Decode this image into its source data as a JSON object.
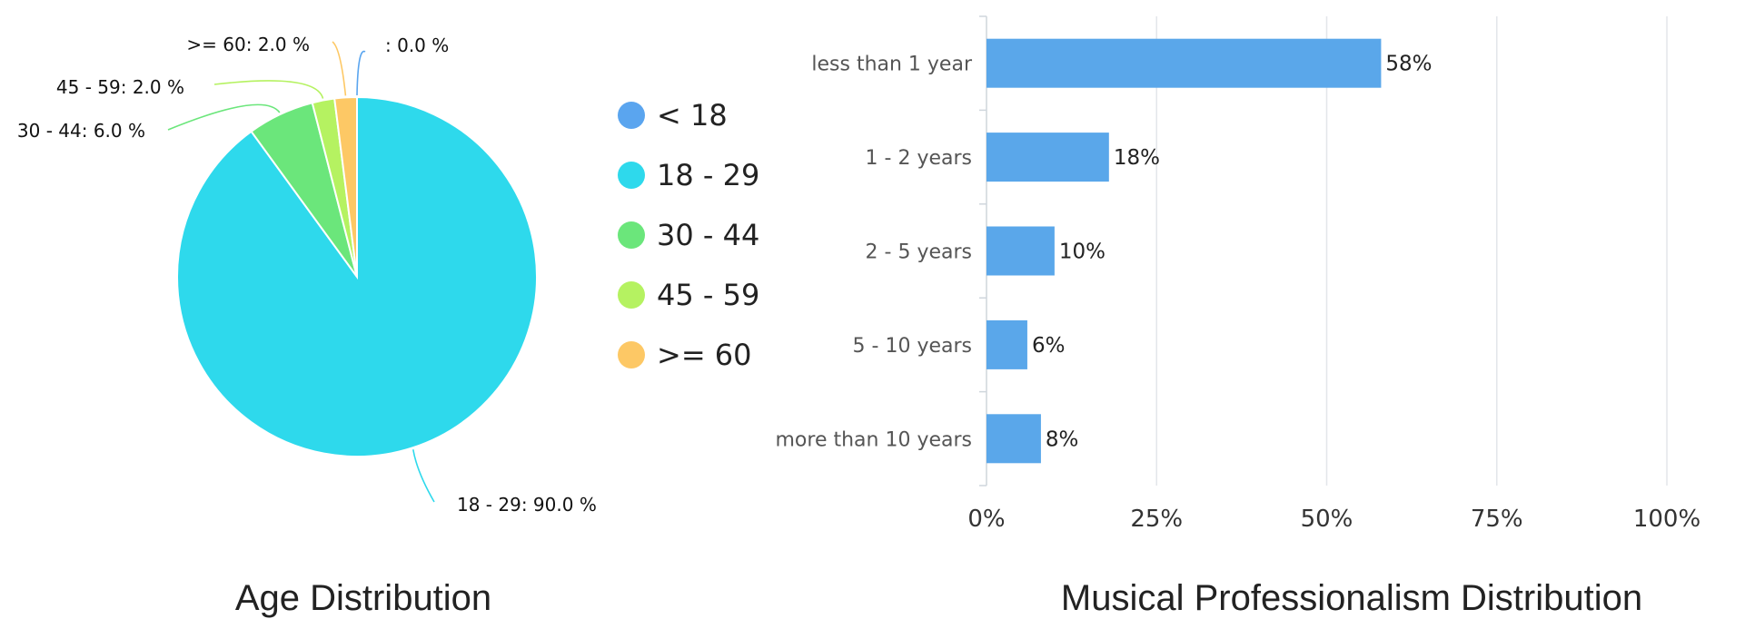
{
  "chart_data": [
    {
      "type": "pie",
      "title": "Age Distribution",
      "slices": [
        {
          "name": "< 18",
          "value": 0.0,
          "color": "#5aa5ef",
          "label": ": 0.0 %"
        },
        {
          "name": "18 - 29",
          "value": 90.0,
          "color": "#2ed9ec",
          "label": "18 - 29: 90.0 %"
        },
        {
          "name": "30 - 44",
          "value": 6.0,
          "color": "#6be67b",
          "label": "30 - 44: 6.0 %"
        },
        {
          "name": "45 - 59",
          "value": 2.0,
          "color": "#b5f261",
          "label": "45 - 59: 2.0 %"
        },
        {
          "name": ">= 60",
          "value": 2.0,
          "color": "#fdc865",
          "label": ">= 60: 2.0 %"
        }
      ],
      "legend": [
        "< 18",
        "18 - 29",
        "30 - 44",
        "45 - 59",
        ">= 60"
      ],
      "legend_placement": "right"
    },
    {
      "type": "bar",
      "orientation": "horizontal",
      "title": "Musical Professionalism Distribution",
      "categories": [
        "less than 1 year",
        "1 - 2 years",
        "2 - 5 years",
        "5 - 10 years",
        "more than 10 years"
      ],
      "values": [
        58,
        18,
        10,
        6,
        8
      ],
      "value_labels": [
        "58%",
        "18%",
        "10%",
        "6%",
        "8%"
      ],
      "xlim": [
        0,
        100
      ],
      "xticks": [
        "0%",
        "25%",
        "50%",
        "75%",
        "100%"
      ],
      "grid": true,
      "color": "#5aa7ea"
    }
  ]
}
